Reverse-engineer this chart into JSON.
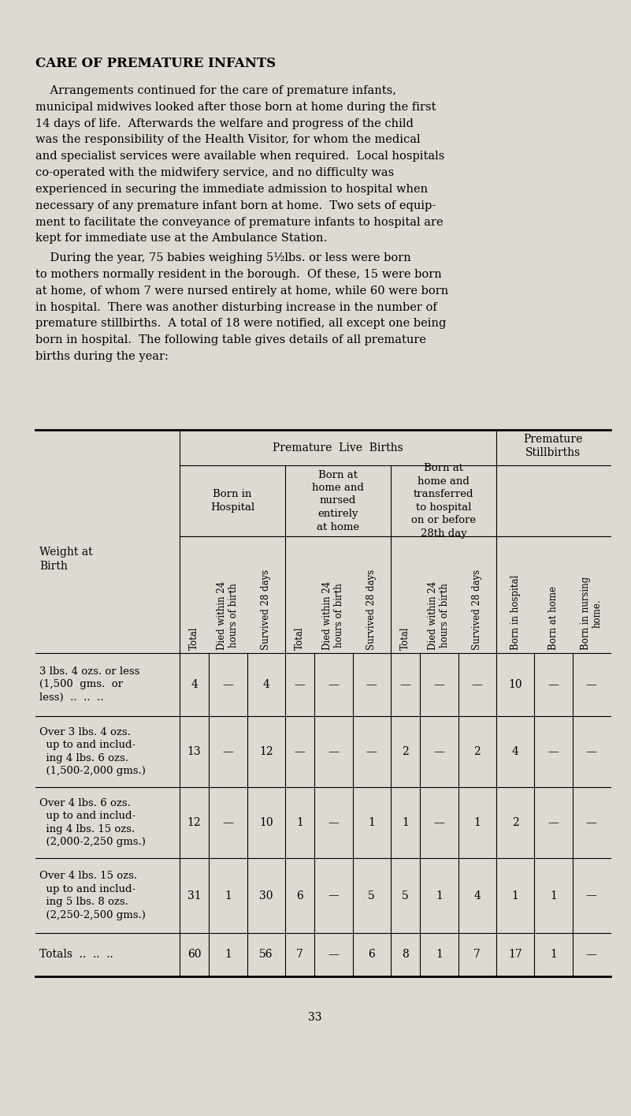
{
  "bg_color": "#dddbd0",
  "title": "CARE OF PREMATURE INFANTS",
  "p1": "    Arrangements continued for the care of premature infants,\nmunicipal midwives looked after those born at home during the first\n14 days of life.  Afterwards the welfare and progress of the child\nwas the responsibility of the Health Visitor, for whom the medical\nand specialist services were available when required.  Local hospitals\nco-operated with the midwifery service, and no difficulty was\nexperienced in securing the immediate admission to hospital when\nnecessary of any premature infant born at home.  Two sets of equip-\nment to facilitate the conveyance of premature infants to hospital are\nkept for immediate use at the Ambulance Station.",
  "p2": "    During the year, 75 babies weighing 5½lbs. or less were born\nto mothers normally resident in the borough.  Of these, 15 were born\nat home, of whom 7 were nursed entirely at home, while 60 were born\nin hospital.  There was another disturbing increase in the number of\npremature stillbirths.  A total of 18 were notified, all except one being\nborn in hospital.  The following table gives details of all premature\nbirths during the year:",
  "page_number": "33",
  "rot_labels": [
    "Total",
    "Died within 24\nhours of birth",
    "Survived 28 days",
    "Total",
    "Died within 24\nhours of birth",
    "Survived 28 days",
    "Total",
    "Died within 24\nhours of birth",
    "Survived 28 days",
    "Born in hospital",
    "Born at home",
    "Born in nursing\nhome."
  ],
  "row_labels": [
    "3 lbs. 4 ozs. or less\n(1,500  gms.  or\nless)  ..  ..  ..",
    "Over 3 lbs. 4 ozs.\n  up to and includ-\n  ing 4 lbs. 6 ozs.\n  (1,500-2,000 gms.)",
    "Over 4 lbs. 6 ozs.\n  up to and includ-\n  ing 4 lbs. 15 ozs.\n  (2,000-2,250 gms.)",
    "Over 4 lbs. 15 ozs.\n  up to and includ-\n  ing 5 lbs. 8 ozs.\n  (2,250-2,500 gms.)"
  ],
  "data": [
    [
      "4",
      "—",
      "4",
      "—",
      "—",
      "—",
      "—",
      "—",
      "—",
      "10",
      "—",
      "—"
    ],
    [
      "13",
      "—",
      "12",
      "—",
      "—",
      "—",
      "2",
      "—",
      "2",
      "4",
      "—",
      "—"
    ],
    [
      "12",
      "—",
      "10",
      "1",
      "—",
      "1",
      "1",
      "—",
      "1",
      "2",
      "—",
      "—"
    ],
    [
      "31",
      "1",
      "30",
      "6",
      "—",
      "5",
      "5",
      "1",
      "4",
      "1",
      "1",
      "—"
    ]
  ],
  "totals": [
    "60",
    "1",
    "56",
    "7",
    "—",
    "6",
    "8",
    "1",
    "7",
    "17",
    "1",
    "—"
  ]
}
